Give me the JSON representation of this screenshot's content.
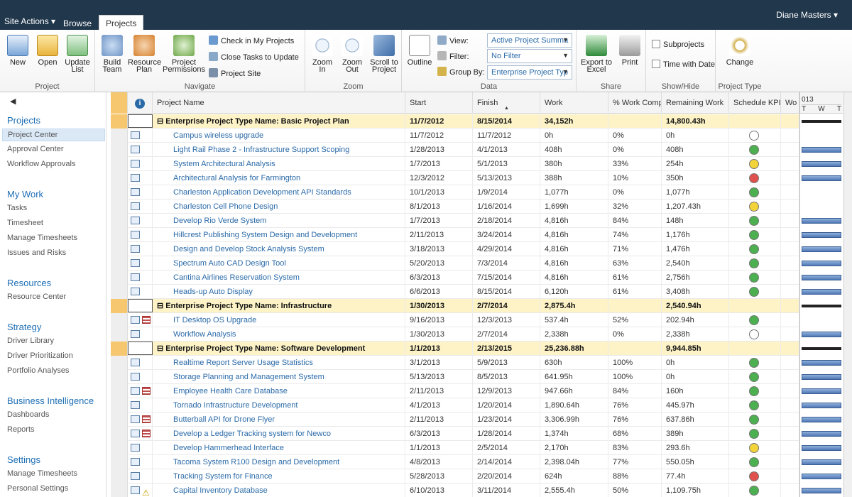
{
  "topbar": {
    "site_actions": "Site Actions ▾",
    "tabs": [
      "Browse",
      "Projects"
    ],
    "user": "Diane Masters ▾"
  },
  "ribbon": {
    "project": {
      "label": "Project",
      "new": "New",
      "open": "Open",
      "update_list": "Update List"
    },
    "navigate": {
      "label": "Navigate",
      "build_team": "Build Team",
      "resource_plan": "Resource Plan",
      "project_permissions": "Project Permissions",
      "check_in": "Check in My Projects",
      "close_tasks": "Close Tasks to Update",
      "project_site": "Project Site"
    },
    "zoom": {
      "label": "Zoom",
      "zoom_in": "Zoom In",
      "zoom_out": "Zoom Out",
      "scroll_to_project": "Scroll to Project"
    },
    "data": {
      "label": "Data",
      "outline": "Outline",
      "view_label": "View:",
      "view_value": "Active Project Summa",
      "filter_label": "Filter:",
      "filter_value": "No Filter",
      "group_label": "Group By:",
      "group_value": "Enterprise Project Typ"
    },
    "share": {
      "label": "Share",
      "export": "Export to Excel",
      "print": "Print"
    },
    "showhide": {
      "label": "Show/Hide",
      "subprojects": "Subprojects",
      "time_with_date": "Time with Date"
    },
    "ptype": {
      "label": "Project Type",
      "change": "Change"
    }
  },
  "nav": {
    "sections": [
      {
        "title": "Projects",
        "items": [
          "Project Center",
          "Approval Center",
          "Workflow Approvals"
        ]
      },
      {
        "title": "My Work",
        "items": [
          "Tasks",
          "Timesheet",
          "Manage Timesheets",
          "Issues and Risks"
        ]
      },
      {
        "title": "Resources",
        "items": [
          "Resource Center"
        ]
      },
      {
        "title": "Strategy",
        "items": [
          "Driver Library",
          "Driver Prioritization",
          "Portfolio Analyses"
        ]
      },
      {
        "title": "Business Intelligence",
        "items": [
          "Dashboards",
          "Reports"
        ]
      },
      {
        "title": "Settings",
        "items": [
          "Manage Timesheets",
          "Personal Settings"
        ]
      }
    ]
  },
  "grid": {
    "columns": [
      "Project Name",
      "Start",
      "Finish",
      "Work",
      "% Work Comp",
      "Remaining Work",
      "Schedule KPI",
      "Wo"
    ],
    "kpi_colors": {
      "green": "#4caf50",
      "yellow": "#f2d33a",
      "red": "#e0504d",
      "none": "#ffffff"
    },
    "rows": [
      {
        "group": true,
        "name": "Enterprise Project Type Name: Basic Project Plan",
        "start": "11/7/2012",
        "finish": "8/15/2014",
        "work": "34,152h",
        "pct": "",
        "rem": "14,800.43h",
        "kpi": ""
      },
      {
        "name": "Campus wireless upgrade",
        "start": "11/7/2012",
        "finish": "11/7/2012",
        "work": "0h",
        "pct": "0%",
        "rem": "0h",
        "kpi": "none"
      },
      {
        "name": "Light Rail Phase 2 - Infrastructure Support Scoping",
        "start": "1/28/2013",
        "finish": "4/1/2013",
        "work": "408h",
        "pct": "0%",
        "rem": "408h",
        "kpi": "green"
      },
      {
        "name": "System Architectural Analysis",
        "start": "1/7/2013",
        "finish": "5/1/2013",
        "work": "380h",
        "pct": "33%",
        "rem": "254h",
        "kpi": "yellow"
      },
      {
        "name": "Architectural Analysis for Farmington",
        "start": "12/3/2012",
        "finish": "5/13/2013",
        "work": "388h",
        "pct": "10%",
        "rem": "350h",
        "kpi": "red"
      },
      {
        "name": "Charleston Application Development API Standards",
        "start": "10/1/2013",
        "finish": "1/9/2014",
        "work": "1,077h",
        "pct": "0%",
        "rem": "1,077h",
        "kpi": "green"
      },
      {
        "name": "Charleston Cell Phone Design",
        "start": "8/1/2013",
        "finish": "1/16/2014",
        "work": "1,699h",
        "pct": "32%",
        "rem": "1,207.43h",
        "kpi": "yellow"
      },
      {
        "name": "Develop Rio Verde System",
        "start": "1/7/2013",
        "finish": "2/18/2014",
        "work": "4,816h",
        "pct": "84%",
        "rem": "148h",
        "kpi": "green"
      },
      {
        "name": "Hillcrest Publishing System Design and Development",
        "start": "2/11/2013",
        "finish": "3/24/2014",
        "work": "4,816h",
        "pct": "74%",
        "rem": "1,176h",
        "kpi": "green"
      },
      {
        "name": "Design and Develop Stock Analysis System",
        "start": "3/18/2013",
        "finish": "4/29/2014",
        "work": "4,816h",
        "pct": "71%",
        "rem": "1,476h",
        "kpi": "green"
      },
      {
        "name": "Spectrum Auto CAD Design Tool",
        "start": "5/20/2013",
        "finish": "7/3/2014",
        "work": "4,816h",
        "pct": "63%",
        "rem": "2,540h",
        "kpi": "green"
      },
      {
        "name": "Cantina Airlines Reservation System",
        "start": "6/3/2013",
        "finish": "7/15/2014",
        "work": "4,816h",
        "pct": "61%",
        "rem": "2,756h",
        "kpi": "green"
      },
      {
        "name": "Heads-up Auto Display",
        "start": "6/6/2013",
        "finish": "8/15/2014",
        "work": "6,120h",
        "pct": "61%",
        "rem": "3,408h",
        "kpi": "green"
      },
      {
        "group": true,
        "name": "Enterprise Project Type Name: Infrastructure",
        "start": "1/30/2013",
        "finish": "2/7/2014",
        "work": "2,875.4h",
        "pct": "",
        "rem": "2,540.94h",
        "kpi": ""
      },
      {
        "name": "IT Desktop OS Upgrade",
        "start": "9/16/2013",
        "finish": "12/3/2013",
        "work": "537.4h",
        "pct": "52%",
        "rem": "202.94h",
        "kpi": "green",
        "flag": "risk"
      },
      {
        "name": "Workflow Analysis",
        "start": "1/30/2013",
        "finish": "2/7/2014",
        "work": "2,338h",
        "pct": "0%",
        "rem": "2,338h",
        "kpi": "none"
      },
      {
        "group": true,
        "name": "Enterprise Project Type Name: Software Development",
        "start": "1/1/2013",
        "finish": "2/13/2015",
        "work": "25,236.88h",
        "pct": "",
        "rem": "9,944.85h",
        "kpi": ""
      },
      {
        "name": "Realtime Report Server Usage Statistics",
        "start": "3/1/2013",
        "finish": "5/9/2013",
        "work": "630h",
        "pct": "100%",
        "rem": "0h",
        "kpi": "green"
      },
      {
        "name": "Storage Planning and Management System",
        "start": "5/13/2013",
        "finish": "8/5/2013",
        "work": "641.95h",
        "pct": "100%",
        "rem": "0h",
        "kpi": "green"
      },
      {
        "name": "Employee Health Care Database",
        "start": "2/11/2013",
        "finish": "12/9/2013",
        "work": "947.66h",
        "pct": "84%",
        "rem": "160h",
        "kpi": "green",
        "flag": "risk"
      },
      {
        "name": "Tornado Infrastructure Development",
        "start": "4/1/2013",
        "finish": "1/20/2014",
        "work": "1,890.64h",
        "pct": "76%",
        "rem": "445.97h",
        "kpi": "green"
      },
      {
        "name": "Butterball API for Drone Flyer",
        "start": "2/11/2013",
        "finish": "1/23/2014",
        "work": "3,306.99h",
        "pct": "76%",
        "rem": "637.86h",
        "kpi": "green",
        "flag": "risk"
      },
      {
        "name": "Develop a Ledger Tracking system for Newco",
        "start": "6/3/2013",
        "finish": "1/28/2014",
        "work": "1,374h",
        "pct": "68%",
        "rem": "389h",
        "kpi": "green",
        "flag": "risk"
      },
      {
        "name": "Develop Hammerhead Interface",
        "start": "1/1/2013",
        "finish": "2/5/2014",
        "work": "2,170h",
        "pct": "83%",
        "rem": "293.6h",
        "kpi": "yellow"
      },
      {
        "name": "Tacoma System R100 Design and Development",
        "start": "4/8/2013",
        "finish": "2/14/2014",
        "work": "2,398.04h",
        "pct": "77%",
        "rem": "550.05h",
        "kpi": "green"
      },
      {
        "name": "Tracking System for Finance",
        "start": "5/28/2013",
        "finish": "2/20/2014",
        "work": "624h",
        "pct": "88%",
        "rem": "77.4h",
        "kpi": "red"
      },
      {
        "name": "Capital Inventory Database",
        "start": "6/10/2013",
        "finish": "3/11/2014",
        "work": "2,555.4h",
        "pct": "50%",
        "rem": "1,109.75h",
        "kpi": "green",
        "flag": "warn"
      }
    ]
  },
  "gantt": {
    "year": "013",
    "days": [
      "T",
      "W",
      "T"
    ],
    "bars": [
      1,
      0,
      1,
      1,
      1,
      0,
      0,
      1,
      1,
      1,
      1,
      1,
      1,
      0,
      0,
      1,
      0,
      1,
      1,
      1,
      1,
      1,
      1,
      1,
      1,
      1,
      1
    ]
  }
}
